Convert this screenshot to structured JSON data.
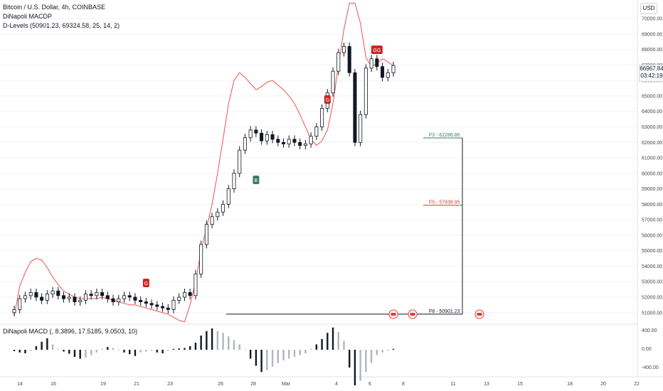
{
  "header": {
    "title": "Bitcoin / U.S. Dollar, 4h, COINBASE",
    "indicator1": "DiNapoli MACDP",
    "indicator2": "D-Levels (50901.23, 69324.58, 25, 14, 2)",
    "macd_legend": "DiNapoli MACD (, 8.3896, 17.5185, 9.0503, 10)",
    "currency": "USD"
  },
  "price_tag": {
    "price": "66967.84",
    "countdown": "03:42:19"
  },
  "colors": {
    "up": "#131722",
    "down": "#131722",
    "ma_line": "#ef5350",
    "f3": "#3b7d5a",
    "f5": "#e53935",
    "f8": "#131722",
    "hist_dark": "#131722",
    "hist_light": "#b2b5be",
    "grid": "#f0f3fa"
  },
  "chart_data": {
    "type": "line",
    "y_ticks": [
      51000,
      52000,
      53000,
      54000,
      55000,
      56000,
      57000,
      58000,
      59000,
      60000,
      61000,
      62000,
      63000,
      64000,
      65000,
      66000,
      67000,
      68000,
      69000,
      70000
    ],
    "y_tick_labels": [
      "51000.00",
      "52000.00",
      "53000.00",
      "54000.00",
      "55000.00",
      "56000.00",
      "57000.00",
      "58000.00",
      "59000.00",
      "60000.00",
      "61000.00",
      "62000.00",
      "63000.00",
      "64000.00",
      "65000.00",
      "66000.00",
      "67000.00",
      "68000.00",
      "69000.00",
      "70000.00"
    ],
    "ylim": [
      50300,
      71200
    ],
    "x_ticks": [
      "14",
      "16",
      "19",
      "21",
      "23",
      "26",
      "28",
      "Mar",
      "4",
      "6",
      "8",
      "11",
      "13",
      "15",
      "18",
      "20",
      "22"
    ],
    "price_close": [
      51200,
      51900,
      52100,
      52300,
      52000,
      51800,
      52200,
      52400,
      52100,
      51900,
      52000,
      51700,
      51800,
      52200,
      52100,
      52300,
      52100,
      51900,
      51700,
      51900,
      52100,
      52000,
      51800,
      51700,
      51600,
      51500,
      51400,
      51300,
      51200,
      51800,
      52000,
      52300,
      52100,
      53500,
      55400,
      56700,
      57200,
      57500,
      58000,
      59000,
      60000,
      61500,
      62300,
      62800,
      62600,
      62100,
      62500,
      62200,
      62000,
      61900,
      62200,
      62000,
      61800,
      61900,
      62400,
      63000,
      64200,
      65200,
      66600,
      67800,
      68200,
      66500,
      62000,
      63800,
      66800,
      67400,
      66900,
      66200,
      66500,
      66968
    ],
    "ma_line": [
      50800,
      52700,
      53600,
      54300,
      54500,
      54400,
      53900,
      53300,
      52800,
      52400,
      52200,
      52000,
      51900,
      51900,
      51900,
      51900,
      52000,
      51900,
      51800,
      51700,
      51600,
      51500,
      51500,
      51400,
      51300,
      51200,
      51100,
      51000,
      50900,
      50700,
      50500,
      50400,
      51500,
      53000,
      55000,
      56500,
      58000,
      60000,
      62200,
      64500,
      66000,
      66500,
      66200,
      65800,
      65400,
      65600,
      65900,
      66000,
      65700,
      65400,
      65000,
      64500,
      63800,
      63000,
      62200,
      61800,
      62100,
      62800,
      64500,
      67000,
      69300,
      71000,
      71000,
      69700,
      67500,
      66900,
      67100,
      67400,
      67200,
      66950
    ],
    "fib_levels": [
      {
        "label": "F3 - 62286.86",
        "value": 62286.86,
        "color": "#3b7d5a"
      },
      {
        "label": "F5 - 57938.95",
        "value": 57938.95,
        "color": "#e53935"
      },
      {
        "label": "F8 - 50901.23",
        "value": 50901.23,
        "color": "#131722"
      }
    ],
    "signals": [
      {
        "label": "G",
        "index": 24,
        "kind": "sell"
      },
      {
        "label": "B",
        "index": 44,
        "kind": "buy"
      },
      {
        "label": "G",
        "index": 57,
        "kind": "sell"
      },
      {
        "label": "GG",
        "index": 66,
        "kind": "sell"
      }
    ],
    "macd_ticks": [
      "400.00",
      "0.00",
      "-400.00"
    ],
    "macd_values": [
      -30,
      -60,
      -80,
      -20,
      80,
      180,
      260,
      120,
      20,
      -40,
      -90,
      -160,
      -200,
      -180,
      -120,
      -60,
      20,
      60,
      40,
      -10,
      -60,
      -100,
      -140,
      -60,
      -40,
      -20,
      -60,
      -80,
      -20,
      20,
      30,
      40,
      80,
      160,
      320,
      420,
      480,
      420,
      380,
      300,
      220,
      120,
      0,
      -200,
      -360,
      -500,
      -460,
      -380,
      -300,
      -240,
      -200,
      -160,
      -120,
      -80,
      20,
      120,
      240,
      380,
      500,
      400,
      200,
      -400,
      -800,
      -700,
      -500,
      -300,
      -120,
      -60,
      -20,
      20
    ],
    "xlabel": "",
    "ylabel": ""
  }
}
